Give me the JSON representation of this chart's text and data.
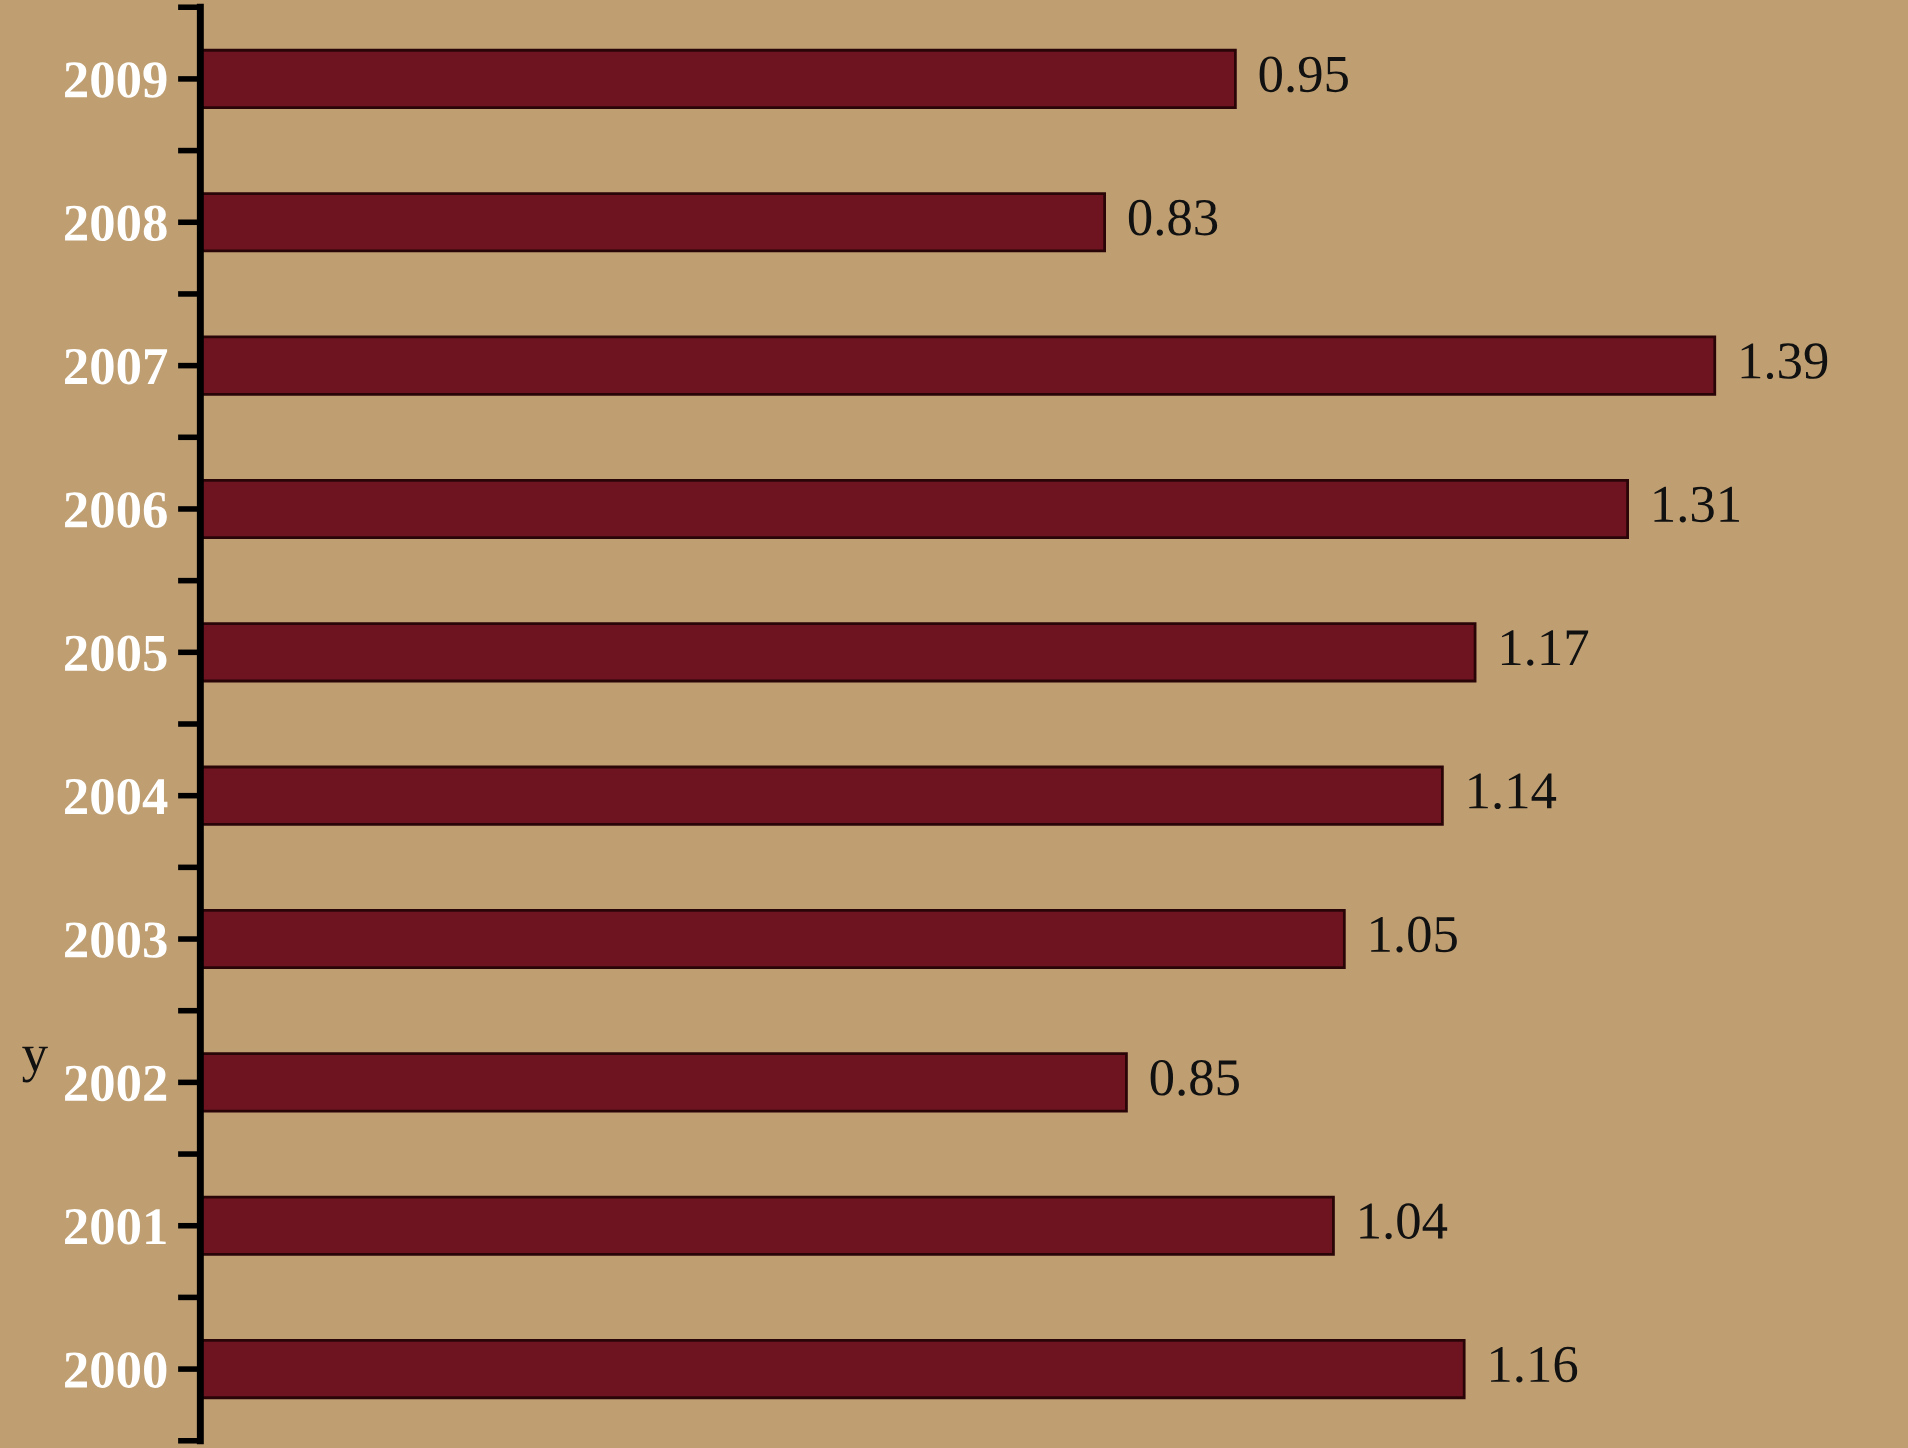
{
  "chart_data": {
    "type": "bar",
    "orientation": "horizontal",
    "ylabel": "y",
    "categories": [
      "2009",
      "2008",
      "2007",
      "2006",
      "2005",
      "2004",
      "2003",
      "2002",
      "2001",
      "2000"
    ],
    "values": [
      0.95,
      0.83,
      1.39,
      1.31,
      1.17,
      1.14,
      1.05,
      0.85,
      1.04,
      1.16
    ],
    "color": "#6e1420",
    "data_labels": true,
    "tick_labels": "y"
  }
}
